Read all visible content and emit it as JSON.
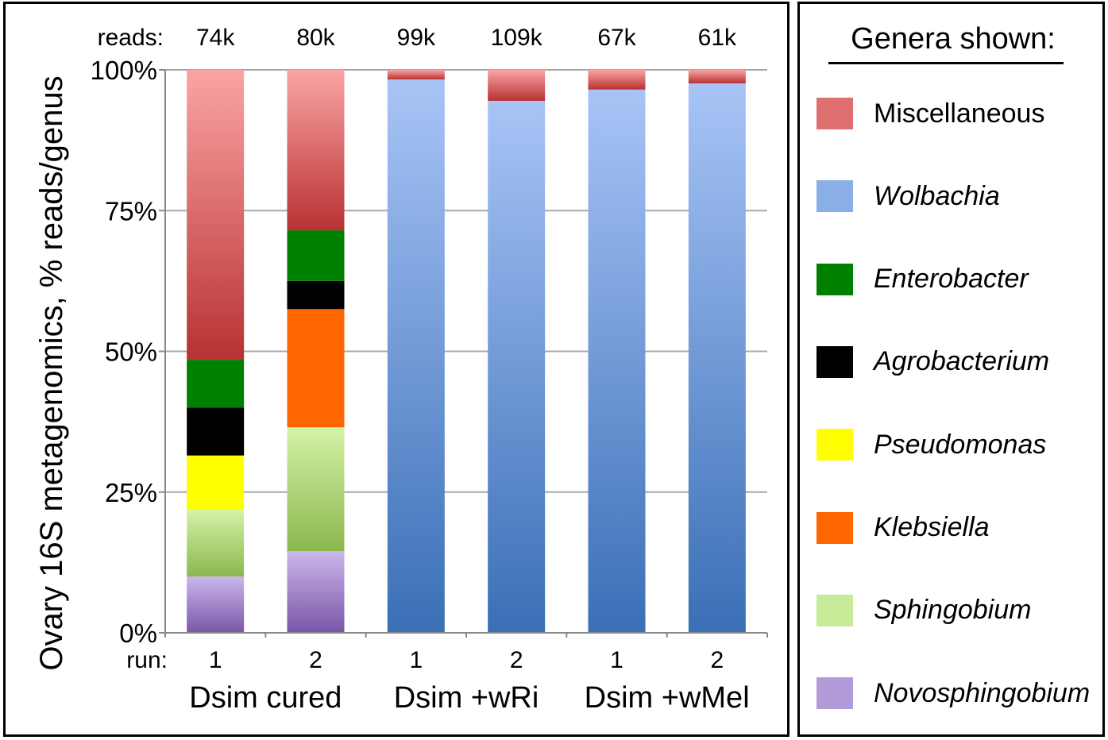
{
  "chart_data": {
    "type": "bar",
    "stacked": true,
    "ylabel": "Ovary 16S metagenomics,  % reads/genus",
    "ylim": [
      0,
      100
    ],
    "yticks": [
      "0%",
      "25%",
      "50%",
      "75%",
      "100%"
    ],
    "reads_label": "reads:",
    "run_label": "run:",
    "reads": [
      "74k",
      "80k",
      "99k",
      "109k",
      "67k",
      "61k"
    ],
    "runs": [
      "1",
      "2",
      "1",
      "2",
      "1",
      "2"
    ],
    "groups": [
      "Dsim cured",
      "Dsim +wRi",
      "Dsim +wMel"
    ],
    "categories": [
      "Dsim cured run 1",
      "Dsim cured run 2",
      "Dsim +wRi run 1",
      "Dsim +wRi run 2",
      "Dsim +wMel run 1",
      "Dsim +wMel run 2"
    ],
    "series": [
      {
        "name": "Novosphingobium",
        "values": [
          10,
          14.5,
          0,
          0,
          0,
          0
        ]
      },
      {
        "name": "Sphingobium",
        "values": [
          12,
          22,
          0,
          0,
          0,
          0
        ]
      },
      {
        "name": "Klebsiella",
        "values": [
          0,
          21,
          0,
          0,
          0,
          0
        ]
      },
      {
        "name": "Pseudomonas",
        "values": [
          9.5,
          0,
          0,
          0,
          0,
          0
        ]
      },
      {
        "name": "Agrobacterium",
        "values": [
          8.5,
          5,
          0,
          0,
          0,
          0
        ]
      },
      {
        "name": "Enterobacter",
        "values": [
          8.5,
          9,
          0,
          0,
          0,
          0
        ]
      },
      {
        "name": "Wolbachia",
        "values": [
          0,
          0,
          98.3,
          94.5,
          96.5,
          97.6
        ]
      },
      {
        "name": "Miscellaneous",
        "values": [
          51.5,
          28.5,
          1.7,
          5.5,
          3.5,
          2.4
        ]
      }
    ]
  },
  "legend": {
    "title": "Genera shown:",
    "items": [
      {
        "name": "Miscellaneous",
        "color": "#e07070",
        "italic": false
      },
      {
        "name": "Wolbachia",
        "color": "#8aaee6",
        "italic": true
      },
      {
        "name": "Enterobacter",
        "color": "#008000",
        "italic": true
      },
      {
        "name": "Agrobacterium",
        "color": "#000000",
        "italic": true
      },
      {
        "name": "Pseudomonas",
        "color": "#ffff00",
        "italic": true
      },
      {
        "name": "Klebsiella",
        "color": "#ff6600",
        "italic": true
      },
      {
        "name": "Sphingobium",
        "color": "#c8eb9a",
        "italic": true
      },
      {
        "name": "Novosphingobium",
        "color": "#b39ad9",
        "italic": true
      }
    ]
  },
  "colors": {
    "Miscellaneous": [
      "#fba4a4",
      "#b83232"
    ],
    "Wolbachia": [
      "#a8c4f6",
      "#3a6fb6"
    ],
    "Enterobacter": [
      "#008000",
      "#008000"
    ],
    "Agrobacterium": [
      "#000000",
      "#000000"
    ],
    "Pseudomonas": [
      "#ffff00",
      "#ffff00"
    ],
    "Klebsiella": [
      "#ff6600",
      "#ff6600"
    ],
    "Sphingobium": [
      "#d4f3a8",
      "#8bb84e"
    ],
    "Novosphingobium": [
      "#cbb6ec",
      "#7a56a8"
    ]
  }
}
